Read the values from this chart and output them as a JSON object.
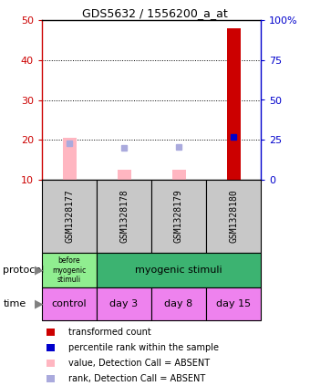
{
  "title": "GDS5632 / 1556200_a_at",
  "samples": [
    "GSM1328177",
    "GSM1328178",
    "GSM1328179",
    "GSM1328180"
  ],
  "bar_values_red": [
    20.5,
    12.5,
    12.5,
    48.0
  ],
  "bar_values_blue_rank": [
    23.0,
    20.0,
    20.5,
    27.0
  ],
  "bar_absent_red": [
    true,
    true,
    true,
    false
  ],
  "bar_absent_blue": [
    true,
    true,
    true,
    false
  ],
  "ylim_left": [
    10,
    50
  ],
  "ylim_right": [
    0,
    100
  ],
  "yticks_left": [
    10,
    20,
    30,
    40,
    50
  ],
  "yticks_right": [
    0,
    25,
    50,
    75,
    100
  ],
  "ytick_labels_right": [
    "0",
    "25",
    "50",
    "75",
    "100%"
  ],
  "time_labels": [
    "control",
    "day 3",
    "day 8",
    "day 15"
  ],
  "time_color": "#ee82ee",
  "sample_bg_color": "#c8c8c8",
  "title_color": "#000000",
  "left_axis_color": "#cc0000",
  "right_axis_color": "#0000cc",
  "bar_color_present_red": "#cc0000",
  "bar_color_absent_red": "#ffb6c1",
  "bar_color_present_blue": "#0000cc",
  "bar_color_absent_blue": "#aaaadd",
  "proto_color_1": "#90ee90",
  "proto_color_2": "#3cb371",
  "legend_items": [
    {
      "color": "#cc0000",
      "label": "transformed count"
    },
    {
      "color": "#0000cc",
      "label": "percentile rank within the sample"
    },
    {
      "color": "#ffb6c1",
      "label": "value, Detection Call = ABSENT"
    },
    {
      "color": "#aaaadd",
      "label": "rank, Detection Call = ABSENT"
    }
  ]
}
